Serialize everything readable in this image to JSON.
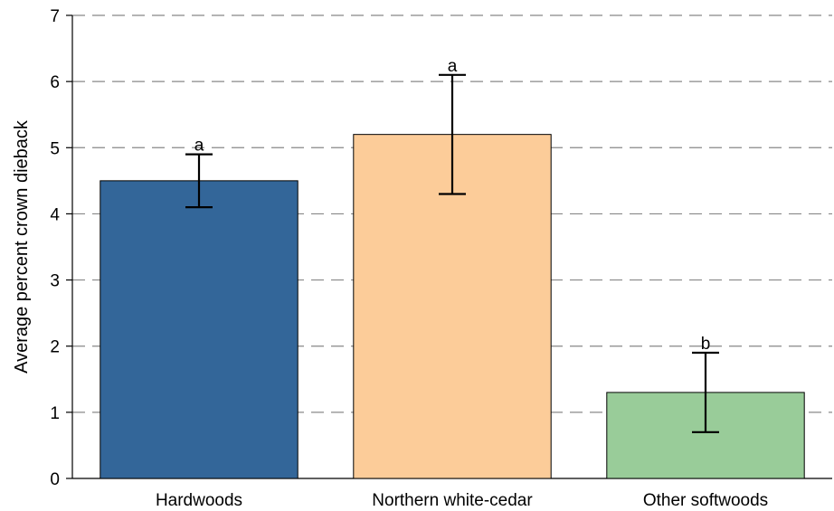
{
  "chart_data": {
    "type": "bar",
    "title": "",
    "xlabel": "",
    "ylabel": "Average percent crown dieback",
    "ylim": [
      0,
      7
    ],
    "yticks": [
      0,
      1,
      2,
      3,
      4,
      5,
      6,
      7
    ],
    "grid": true,
    "grid_style": "dashed",
    "categories": [
      "Hardwoods",
      "Northern white-cedar",
      "Other softwoods"
    ],
    "values": [
      4.5,
      5.2,
      1.3
    ],
    "error_low": [
      4.1,
      4.3,
      0.7
    ],
    "error_high": [
      4.9,
      6.1,
      1.9
    ],
    "significance_labels": [
      "a",
      "a",
      "b"
    ],
    "colors": [
      "#336699",
      "#fccc99",
      "#99cc99"
    ]
  }
}
